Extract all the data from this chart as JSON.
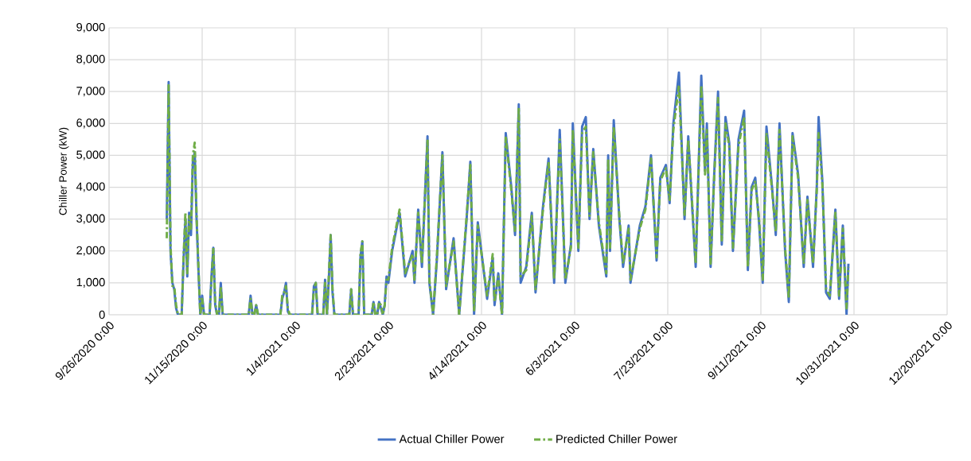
{
  "chart_data": {
    "type": "line",
    "ylabel": "Chiller Power (kW)",
    "x": [
      "2020-10-27",
      "2020-10-28",
      "2020-10-29",
      "2020-10-30",
      "2020-10-31",
      "2020-11-01",
      "2020-11-02",
      "2020-11-04",
      "2020-11-05",
      "2020-11-06",
      "2020-11-07",
      "2020-11-08",
      "2020-11-09",
      "2020-11-10",
      "2020-11-11",
      "2020-11-12",
      "2020-11-13",
      "2020-11-14",
      "2020-11-15",
      "2020-11-16",
      "2020-11-19",
      "2020-11-20",
      "2020-11-21",
      "2020-11-22",
      "2020-11-23",
      "2020-11-24",
      "2020-11-25",
      "2020-11-26",
      "2020-12-10",
      "2020-12-11",
      "2020-12-12",
      "2020-12-13",
      "2020-12-14",
      "2020-12-15",
      "2020-12-27",
      "2020-12-28",
      "2020-12-29",
      "2020-12-30",
      "2020-12-31",
      "2021-01-01",
      "2021-01-13",
      "2021-01-14",
      "2021-01-15",
      "2021-01-16",
      "2021-01-19",
      "2021-01-20",
      "2021-01-21",
      "2021-01-22",
      "2021-01-23",
      "2021-01-24",
      "2021-01-25",
      "2021-02-02",
      "2021-02-03",
      "2021-02-04",
      "2021-02-07",
      "2021-02-08",
      "2021-02-09",
      "2021-02-10",
      "2021-02-14",
      "2021-02-15",
      "2021-02-16",
      "2021-02-17",
      "2021-02-18",
      "2021-02-19",
      "2021-02-20",
      "2021-02-21",
      "2021-02-22",
      "2021-02-23",
      "2021-02-25",
      "2021-03-01",
      "2021-03-04",
      "2021-03-08",
      "2021-03-09",
      "2021-03-11",
      "2021-03-13",
      "2021-03-16",
      "2021-03-17",
      "2021-03-19",
      "2021-03-21",
      "2021-03-24",
      "2021-03-26",
      "2021-03-30",
      "2021-04-02",
      "2021-04-06",
      "2021-04-08",
      "2021-04-10",
      "2021-04-12",
      "2021-04-17",
      "2021-04-20",
      "2021-04-21",
      "2021-04-23",
      "2021-04-25",
      "2021-04-27",
      "2021-04-30",
      "2021-05-02",
      "2021-05-04",
      "2021-05-05",
      "2021-05-08",
      "2021-05-11",
      "2021-05-13",
      "2021-05-17",
      "2021-05-20",
      "2021-05-23",
      "2021-05-26",
      "2021-05-29",
      "2021-06-01",
      "2021-06-02",
      "2021-06-05",
      "2021-06-07",
      "2021-06-09",
      "2021-06-11",
      "2021-06-13",
      "2021-06-16",
      "2021-06-20",
      "2021-06-21",
      "2021-06-22",
      "2021-06-24",
      "2021-06-27",
      "2021-06-29",
      "2021-07-02",
      "2021-07-03",
      "2021-07-08",
      "2021-07-11",
      "2021-07-14",
      "2021-07-17",
      "2021-07-19",
      "2021-07-22",
      "2021-07-24",
      "2021-07-26",
      "2021-07-29",
      "2021-08-01",
      "2021-08-03",
      "2021-08-05",
      "2021-08-07",
      "2021-08-10",
      "2021-08-12",
      "2021-08-13",
      "2021-08-15",
      "2021-08-17",
      "2021-08-19",
      "2021-08-21",
      "2021-08-23",
      "2021-08-25",
      "2021-08-27",
      "2021-08-30",
      "2021-09-02",
      "2021-09-04",
      "2021-09-06",
      "2021-09-08",
      "2021-09-10",
      "2021-09-12",
      "2021-09-14",
      "2021-09-17",
      "2021-09-19",
      "2021-09-21",
      "2021-09-24",
      "2021-09-26",
      "2021-09-28",
      "2021-10-01",
      "2021-10-04",
      "2021-10-06",
      "2021-10-09",
      "2021-10-11",
      "2021-10-12",
      "2021-10-14",
      "2021-10-16",
      "2021-10-18",
      "2021-10-21",
      "2021-10-23",
      "2021-10-25",
      "2021-10-27",
      "2021-10-28"
    ],
    "series": [
      {
        "name": "Actual Chiller Power",
        "color": "#4472c4",
        "line_style": "solid",
        "values": [
          3000,
          7300,
          2000,
          1000,
          800,
          200,
          0,
          0,
          1700,
          3000,
          1200,
          3200,
          2500,
          4800,
          5100,
          3000,
          1400,
          0,
          600,
          0,
          0,
          1200,
          2100,
          300,
          0,
          0,
          1000,
          0,
          0,
          600,
          0,
          0,
          300,
          0,
          0,
          500,
          700,
          1000,
          100,
          0,
          0,
          900,
          1000,
          0,
          0,
          1100,
          0,
          1100,
          2500,
          700,
          0,
          0,
          800,
          0,
          0,
          1800,
          2300,
          0,
          0,
          400,
          0,
          0,
          400,
          200,
          0,
          300,
          1200,
          1000,
          2000,
          3200,
          1200,
          2000,
          1000,
          3300,
          1500,
          5600,
          1000,
          0,
          1700,
          5100,
          800,
          2400,
          0,
          3000,
          4800,
          0,
          2900,
          500,
          1800,
          300,
          1300,
          0,
          5700,
          4000,
          2500,
          6600,
          1000,
          1500,
          3200,
          700,
          3400,
          4900,
          1000,
          5800,
          1000,
          2200,
          6000,
          2000,
          5900,
          6200,
          3000,
          5200,
          2800,
          1200,
          5000,
          2000,
          6100,
          3000,
          1500,
          2800,
          1000,
          2800,
          3400,
          5000,
          1700,
          4300,
          4700,
          3500,
          6000,
          7600,
          3000,
          5600,
          3500,
          1500,
          7500,
          4500,
          6000,
          1500,
          4500,
          7000,
          2200,
          6200,
          5400,
          2000,
          5500,
          6400,
          1400,
          4000,
          4300,
          2900,
          1000,
          5900,
          4000,
          2500,
          6000,
          2000,
          400,
          5700,
          4400,
          1500,
          3700,
          1500,
          4000,
          6200,
          4200,
          700,
          500,
          3300,
          500,
          2800,
          0,
          1600
        ]
      },
      {
        "name": "Predicted Chiller Power",
        "color": "#70ad47",
        "line_style": "dashed",
        "values": [
          2400,
          7200,
          2200,
          900,
          900,
          300,
          0,
          0,
          1800,
          3200,
          1300,
          3100,
          2700,
          5000,
          5400,
          3100,
          1500,
          0,
          500,
          0,
          0,
          1100,
          2100,
          400,
          0,
          0,
          900,
          0,
          0,
          500,
          0,
          0,
          300,
          0,
          0,
          600,
          700,
          900,
          200,
          0,
          0,
          800,
          1000,
          0,
          0,
          1000,
          0,
          1200,
          2500,
          800,
          0,
          0,
          800,
          0,
          0,
          1900,
          2300,
          0,
          0,
          400,
          0,
          0,
          400,
          300,
          0,
          300,
          1100,
          1100,
          2100,
          3300,
          1300,
          1900,
          1100,
          3200,
          1600,
          5500,
          1100,
          0,
          1800,
          5000,
          900,
          2300,
          0,
          3100,
          4700,
          100,
          2800,
          600,
          1900,
          400,
          1200,
          0,
          5600,
          3900,
          2600,
          6500,
          1200,
          1400,
          3100,
          800,
          3300,
          4800,
          1100,
          5500,
          1100,
          2100,
          5800,
          2100,
          5700,
          5900,
          3100,
          5100,
          2900,
          1300,
          4900,
          2100,
          5900,
          3100,
          1600,
          2700,
          1100,
          2700,
          3300,
          4900,
          1800,
          4200,
          4600,
          3600,
          5800,
          7200,
          3100,
          5500,
          3600,
          1600,
          7200,
          4400,
          5800,
          1600,
          4400,
          6800,
          2300,
          6000,
          5300,
          2100,
          5300,
          6200,
          1500,
          3900,
          4200,
          3000,
          1100,
          5700,
          3900,
          2600,
          5800,
          2100,
          500,
          5600,
          4300,
          1600,
          3600,
          1600,
          3900,
          5700,
          4100,
          800,
          600,
          3200,
          600,
          2700,
          200,
          1500
        ]
      }
    ],
    "xlim": [
      "2020-09-26",
      "2021-12-20"
    ],
    "xticks": [
      {
        "value": "2020-09-26",
        "label": "9/26/2020 0:00"
      },
      {
        "value": "2020-11-15",
        "label": "11/15/2020 0:00"
      },
      {
        "value": "2021-01-04",
        "label": "1/4/2021 0:00"
      },
      {
        "value": "2021-02-23",
        "label": "2/23/2021 0:00"
      },
      {
        "value": "2021-04-14",
        "label": "4/14/2021 0:00"
      },
      {
        "value": "2021-06-03",
        "label": "6/3/2021 0:00"
      },
      {
        "value": "2021-07-23",
        "label": "7/23/2021 0:00"
      },
      {
        "value": "2021-09-11",
        "label": "9/11/2021 0:00"
      },
      {
        "value": "2021-10-31",
        "label": "10/31/2021 0:00"
      },
      {
        "value": "2021-12-20",
        "label": "12/20/2021 0:00"
      }
    ],
    "ylim": [
      0,
      9000
    ],
    "yticks": [
      0,
      {
        "value": 1000,
        "label": "1,000"
      },
      {
        "value": 2000,
        "label": "2,000"
      },
      {
        "value": 3000,
        "label": "3,000"
      },
      {
        "value": 4000,
        "label": "4,000"
      },
      {
        "value": 5000,
        "label": "5,000"
      },
      {
        "value": 6000,
        "label": "6,000"
      },
      {
        "value": 7000,
        "label": "7,000"
      },
      {
        "value": 8000,
        "label": "8,000"
      },
      {
        "value": 9000,
        "label": "9,000"
      }
    ],
    "grid": true,
    "legend": "bottom"
  }
}
